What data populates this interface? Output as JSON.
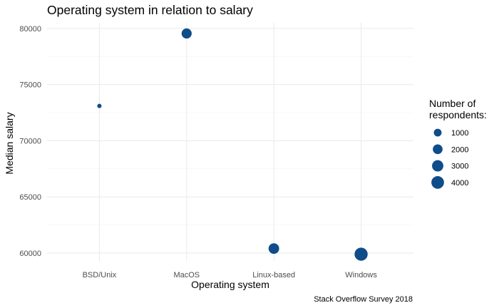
{
  "chart_data": {
    "type": "scatter",
    "title": "Operating system in relation to salary",
    "xlabel": "Operating system",
    "ylabel": "Median salary",
    "caption": "Stack Overflow Survey 2018",
    "categories": [
      "BSD/Unix",
      "MacOS",
      "Linux-based",
      "Windows"
    ],
    "values": [
      73100,
      79550,
      60400,
      59900
    ],
    "sizes": [
      90,
      2200,
      2500,
      4400
    ],
    "ylim": [
      59300,
      80500
    ],
    "yticks": [
      60000,
      65000,
      70000,
      75000,
      80000
    ],
    "size_legend": {
      "title_lines": [
        "Number of",
        "respondents:"
      ],
      "entries": [
        {
          "label": "1000",
          "value": 1000
        },
        {
          "label": "2000",
          "value": 2000
        },
        {
          "label": "3000",
          "value": 3000
        },
        {
          "label": "4000",
          "value": 4000
        }
      ]
    },
    "point_color": "#0f4c8a",
    "grid": true,
    "legend_position": "right"
  }
}
